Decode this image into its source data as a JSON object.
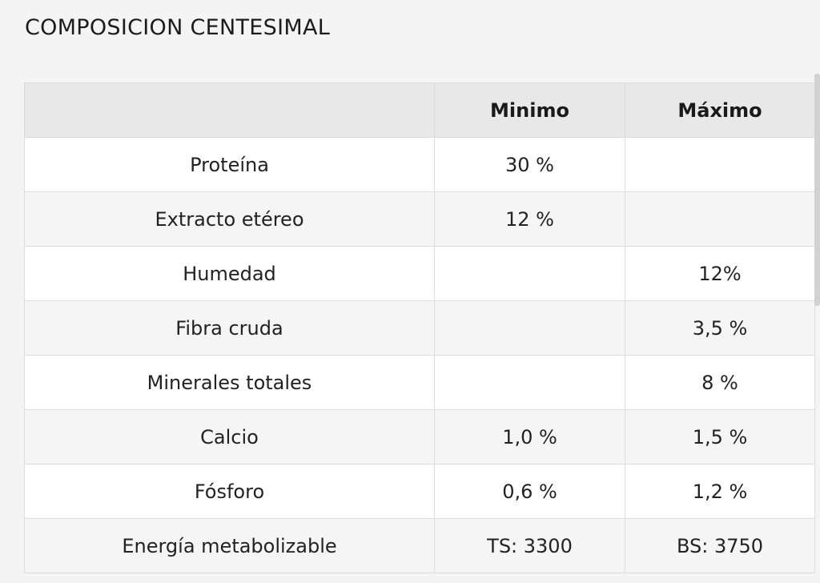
{
  "title": "COMPOSICION CENTESIMAL",
  "table": {
    "headers": [
      "",
      "Minimo",
      "Máximo"
    ],
    "rows": [
      [
        "Proteína",
        "30 %",
        ""
      ],
      [
        "Extracto etéreo",
        "12 %",
        ""
      ],
      [
        "Humedad",
        "",
        "12%"
      ],
      [
        "Fibra cruda",
        "",
        "3,5 %"
      ],
      [
        "Minerales totales",
        "",
        "8 %"
      ],
      [
        "Calcio",
        "1,0 %",
        "1,5 %"
      ],
      [
        "Fósforo",
        "0,6 %",
        "1,2 %"
      ],
      [
        "Energía metabolizable",
        "TS: 3300",
        "BS: 3750"
      ]
    ]
  }
}
